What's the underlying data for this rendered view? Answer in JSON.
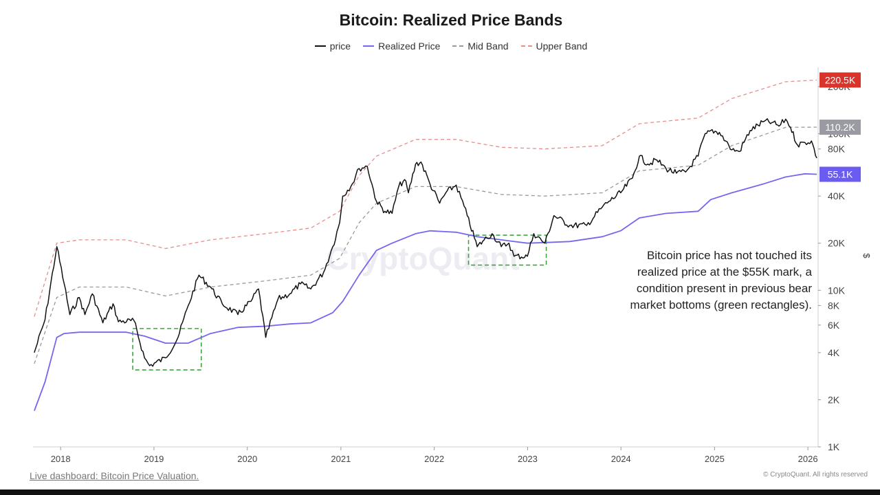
{
  "chart_data": {
    "type": "line",
    "title": "Bitcoin: Realized Price Bands",
    "ylabel": "$",
    "yscale": "log",
    "ylim": [
      1000,
      240000
    ],
    "xlim": [
      "2017-09-15",
      "2026-02-10"
    ],
    "grid": false,
    "legend_position": "top-center",
    "x_ticks": [
      "2018",
      "2019",
      "2020",
      "2021",
      "2022",
      "2023",
      "2024",
      "2025",
      "2026"
    ],
    "y_ticks": [
      "1K",
      "2K",
      "4K",
      "6K",
      "8K",
      "10K",
      "20K",
      "40K",
      "80K",
      "100K",
      "200K"
    ],
    "legend": [
      {
        "name": "price",
        "color": "#111111",
        "style": "solid"
      },
      {
        "name": "Realized Price",
        "color": "#7466f0",
        "style": "solid"
      },
      {
        "name": "Mid Band",
        "color": "#999999",
        "style": "dashed"
      },
      {
        "name": "Upper Band",
        "color": "#e88c8c",
        "style": "dashed"
      }
    ],
    "value_labels": [
      {
        "text": "220.5K",
        "series": "Upper Band",
        "value": 220500,
        "color": "#d9342b"
      },
      {
        "text": "110.2K",
        "series": "Mid Band",
        "value": 110200,
        "color": "#9a9aa3"
      },
      {
        "text": "55.1K",
        "series": "Realized Price",
        "value": 55100,
        "color": "#6a5cf0"
      }
    ],
    "series": [
      {
        "name": "price",
        "x": [
          "2017-09-20",
          "2017-11-01",
          "2017-12-17",
          "2018-01-15",
          "2018-02-06",
          "2018-03-15",
          "2018-04-06",
          "2018-05-05",
          "2018-06-15",
          "2018-07-25",
          "2018-08-15",
          "2018-10-15",
          "2018-11-25",
          "2018-12-15",
          "2019-02-15",
          "2019-04-05",
          "2019-05-15",
          "2019-06-26",
          "2019-08-10",
          "2019-09-25",
          "2019-11-25",
          "2020-01-15",
          "2020-02-14",
          "2020-03-13",
          "2020-04-30",
          "2020-06-15",
          "2020-07-27",
          "2020-09-05",
          "2020-10-25",
          "2020-11-30",
          "2020-12-27",
          "2021-01-08",
          "2021-02-15",
          "2021-03-13",
          "2021-04-14",
          "2021-05-20",
          "2021-06-22",
          "2021-07-20",
          "2021-08-15",
          "2021-09-07",
          "2021-09-22",
          "2021-10-20",
          "2021-11-10",
          "2021-12-15",
          "2022-01-22",
          "2022-02-15",
          "2022-03-28",
          "2022-05-10",
          "2022-06-18",
          "2022-07-15",
          "2022-08-15",
          "2022-09-20",
          "2022-10-20",
          "2022-11-09",
          "2022-12-31",
          "2023-01-25",
          "2023-03-10",
          "2023-04-14",
          "2023-06-15",
          "2023-08-20",
          "2023-10-20",
          "2023-11-15",
          "2023-12-31",
          "2024-02-15",
          "2024-03-13",
          "2024-04-15",
          "2024-05-20",
          "2024-06-25",
          "2024-08-05",
          "2024-09-10",
          "2024-10-29",
          "2024-11-20",
          "2024-12-17",
          "2025-01-20",
          "2025-02-26",
          "2025-03-10",
          "2025-04-08",
          "2025-05-20",
          "2025-07-14",
          "2025-08-14",
          "2025-09-10",
          "2025-10-06",
          "2025-10-25",
          "2025-11-21",
          "2025-12-20",
          "2026-01-15",
          "2026-02-05"
        ],
        "y": [
          4000,
          6500,
          19000,
          11000,
          7000,
          9000,
          7000,
          9500,
          6200,
          8200,
          6300,
          6400,
          3700,
          3300,
          3700,
          5000,
          8000,
          12500,
          10500,
          8200,
          7000,
          8500,
          10200,
          5000,
          8800,
          9500,
          11000,
          10200,
          13000,
          19000,
          27000,
          40000,
          48000,
          60000,
          62000,
          37000,
          32000,
          31000,
          46000,
          51000,
          42000,
          64000,
          66000,
          48000,
          36000,
          42000,
          47000,
          30000,
          19000,
          21000,
          23000,
          19000,
          20000,
          16500,
          16500,
          23000,
          20000,
          30000,
          26000,
          26000,
          34000,
          37000,
          42000,
          52000,
          72000,
          64000,
          68000,
          60000,
          56000,
          57000,
          72000,
          95000,
          105000,
          102000,
          84000,
          79000,
          77000,
          105000,
          120000,
          118000,
          112000,
          124000,
          110000,
          85000,
          88000,
          90000,
          70000
        ]
      },
      {
        "name": "Realized Price",
        "x": [
          "2017-09-20",
          "2017-11-01",
          "2017-12-17",
          "2018-01-15",
          "2018-03-15",
          "2018-06-15",
          "2018-09-15",
          "2018-11-25",
          "2019-02-15",
          "2019-05-15",
          "2019-08-10",
          "2019-11-25",
          "2020-03-13",
          "2020-06-15",
          "2020-09-05",
          "2020-11-30",
          "2021-01-08",
          "2021-03-13",
          "2021-05-20",
          "2021-07-20",
          "2021-10-20",
          "2021-12-15",
          "2022-03-28",
          "2022-06-18",
          "2022-09-20",
          "2022-12-31",
          "2023-03-10",
          "2023-06-15",
          "2023-10-20",
          "2023-12-31",
          "2024-03-13",
          "2024-06-25",
          "2024-10-29",
          "2024-12-17",
          "2025-03-10",
          "2025-07-14",
          "2025-10-06",
          "2025-12-20",
          "2026-02-05"
        ],
        "y": [
          1700,
          2600,
          5000,
          5300,
          5400,
          5400,
          5400,
          5100,
          4600,
          4600,
          5300,
          5800,
          5900,
          6100,
          6200,
          7200,
          8500,
          12500,
          18000,
          20000,
          23000,
          24000,
          23500,
          22000,
          21000,
          20000,
          20200,
          20500,
          22000,
          24000,
          29000,
          31000,
          32000,
          38000,
          42000,
          48000,
          53000,
          55500,
          55100
        ]
      },
      {
        "name": "Mid Band",
        "x": [
          "2017-09-20",
          "2017-12-17",
          "2018-03-15",
          "2018-09-15",
          "2019-02-15",
          "2019-08-10",
          "2020-03-13",
          "2020-09-05",
          "2020-12-27",
          "2021-03-13",
          "2021-05-20",
          "2021-10-20",
          "2022-03-28",
          "2022-09-20",
          "2023-03-10",
          "2023-10-20",
          "2024-03-13",
          "2024-10-29",
          "2025-03-10",
          "2025-10-06",
          "2026-02-05"
        ],
        "y": [
          3400,
          9000,
          10500,
          10500,
          9200,
          10500,
          11500,
          12500,
          16000,
          27000,
          36000,
          46000,
          46000,
          41000,
          40000,
          42000,
          58000,
          63000,
          84000,
          110000,
          110200
        ]
      },
      {
        "name": "Upper Band",
        "x": [
          "2017-09-20",
          "2017-12-17",
          "2018-03-15",
          "2018-09-15",
          "2019-02-15",
          "2019-08-10",
          "2020-03-13",
          "2020-09-05",
          "2020-12-27",
          "2021-03-13",
          "2021-05-20",
          "2021-10-20",
          "2022-03-28",
          "2022-09-20",
          "2023-03-10",
          "2023-10-20",
          "2024-03-13",
          "2024-10-29",
          "2025-03-10",
          "2025-10-06",
          "2026-02-05"
        ],
        "y": [
          6800,
          20000,
          21000,
          21000,
          18500,
          21000,
          23000,
          25000,
          32000,
          54000,
          72000,
          92000,
          92000,
          82000,
          80000,
          84000,
          116000,
          126000,
          168000,
          215000,
          220500
        ]
      }
    ],
    "highlight_boxes": [
      {
        "x": [
          "2018-10-10",
          "2019-07-05"
        ],
        "y": [
          3100,
          5700
        ],
        "color": "#3aa63a"
      },
      {
        "x": [
          "2022-05-15",
          "2023-03-15"
        ],
        "y": [
          14500,
          22500
        ],
        "color": "#3aa63a"
      }
    ],
    "annotation": [
      "Bitcoin price has not touched its",
      "realized price at the $55K mark, a",
      "condition present in previous bear",
      "market bottoms (green rectangles)."
    ]
  },
  "watermark": "CryptoQuant",
  "footer": {
    "link_text": "Live dashboard: Bitcoin Price Valuation.",
    "copyright": "© CryptoQuant. All rights reserved"
  }
}
